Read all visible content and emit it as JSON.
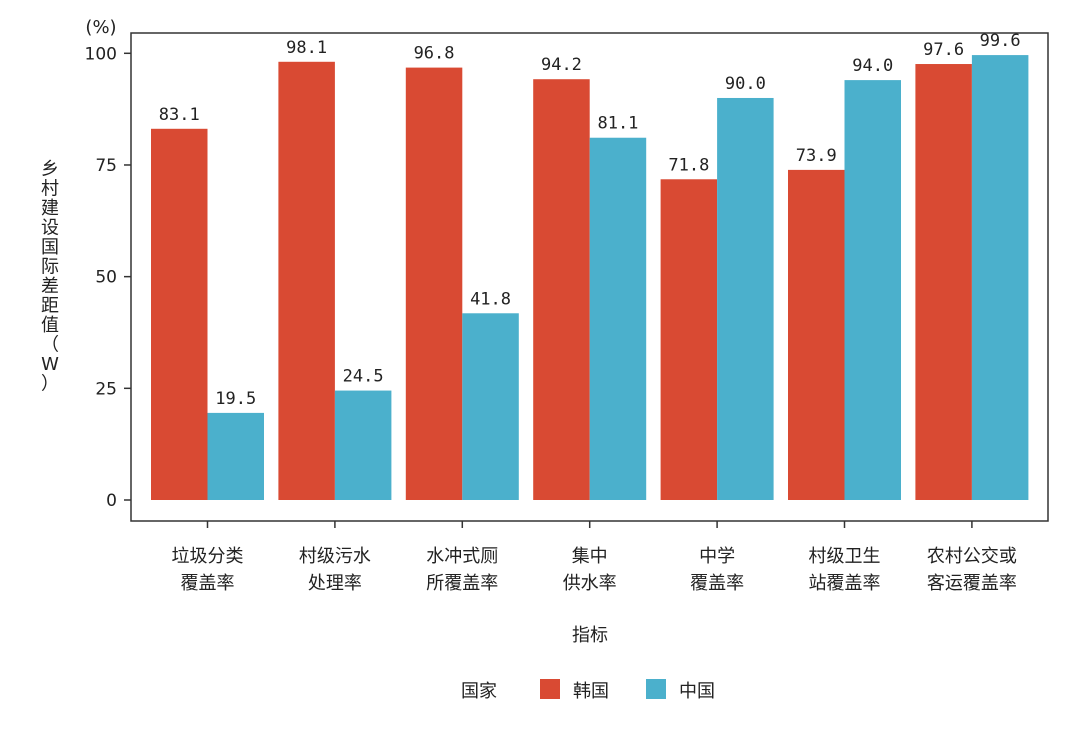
{
  "chart_data": {
    "type": "bar",
    "y_unit": "(%)",
    "ylabel_chars": [
      "乡",
      "村",
      "建",
      "设",
      "国",
      "际",
      "差",
      "距",
      "值",
      "（",
      "W",
      "）"
    ],
    "xlabel": "指标",
    "ylim": [
      0,
      105
    ],
    "yticks": [
      0,
      25,
      50,
      75,
      100
    ],
    "categories": [
      [
        "垃圾分类",
        "覆盖率"
      ],
      [
        "村级污水",
        "处理率"
      ],
      [
        "水冲式厕",
        "所覆盖率"
      ],
      [
        "集中",
        "供水率"
      ],
      [
        "中学",
        "覆盖率"
      ],
      [
        "村级卫生",
        "站覆盖率"
      ],
      [
        "农村公交或",
        "客运覆盖率"
      ]
    ],
    "series": [
      {
        "name": "韩国",
        "color": "#d94a33",
        "values": [
          83.1,
          98.1,
          96.8,
          94.2,
          71.8,
          73.9,
          97.6
        ],
        "labels": [
          "83.1",
          "98.1",
          "96.8",
          "94.2",
          "71.8",
          "73.9",
          "97.6"
        ]
      },
      {
        "name": "中国",
        "color": "#4bb0cc",
        "values": [
          19.5,
          24.5,
          41.8,
          81.1,
          90.0,
          94.0,
          99.6
        ],
        "labels": [
          "19.5",
          "24.5",
          "41.8",
          "81.1",
          "90.0",
          "94.0",
          "99.6"
        ]
      }
    ],
    "legend": {
      "title": "国家",
      "position": "bottom-center"
    },
    "grid": false
  }
}
